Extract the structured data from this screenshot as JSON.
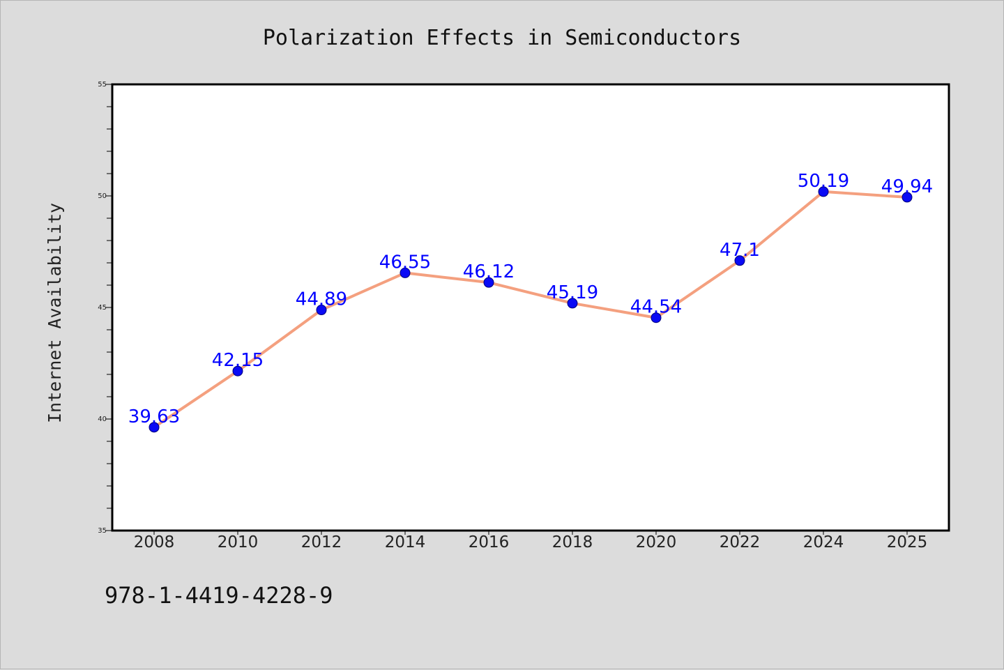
{
  "colors": {
    "background": "#dcdcdc",
    "plot_background": "#ffffff",
    "line": "#f4a07f",
    "marker": "#0a0af5",
    "data_label": "#0000ff",
    "axis": "#000000"
  },
  "footer": {
    "isbn": "978-1-4419-4228-9"
  },
  "chart_data": {
    "type": "line",
    "title": "Polarization Effects in Semiconductors",
    "xlabel": "",
    "ylabel": "Internet Availability",
    "categories": [
      "2008",
      "2010",
      "2012",
      "2014",
      "2016",
      "2018",
      "2020",
      "2022",
      "2024",
      "2025"
    ],
    "series": [
      {
        "values": [
          39.63,
          42.15,
          44.89,
          46.55,
          46.12,
          45.19,
          44.54,
          47.1,
          50.19,
          49.94
        ],
        "labels": [
          "39.63",
          "42.15",
          "44.89",
          "46.55",
          "46.12",
          "45.19",
          "44.54",
          "47.1",
          "50.19",
          "49.94"
        ],
        "color": "#f4a07f",
        "marker_color": "#0a0af5"
      }
    ],
    "ylim": [
      35,
      55
    ],
    "yticks": [
      35,
      40,
      45,
      50,
      55
    ],
    "yticks_labels": [
      "35",
      "40",
      "45",
      "50",
      "55"
    ],
    "minor_ytick_step": 1,
    "grid": false,
    "legend": "none"
  }
}
